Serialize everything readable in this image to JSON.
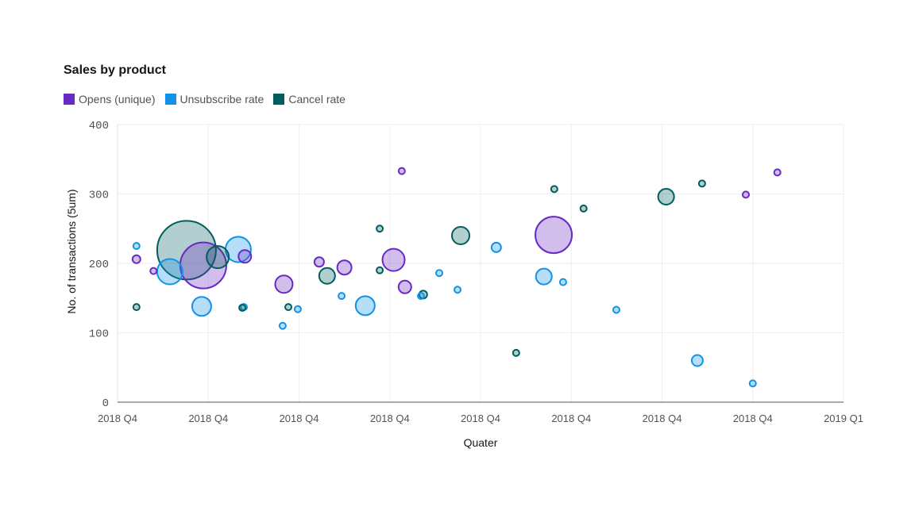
{
  "chart_data": {
    "type": "bubble",
    "title": "Sales by product",
    "xlabel": "Quater",
    "ylabel": "No. of transactions (5um)",
    "ylim": [
      0,
      400
    ],
    "yticks": [
      "0",
      "100",
      "200",
      "300",
      "400"
    ],
    "xlim": [
      "2018-12-24T00:00",
      "2019-01-01T00:00"
    ],
    "xticks": [
      "2018 Q4",
      "2018 Q4",
      "2018 Q4",
      "2018 Q4",
      "2018 Q4",
      "2018 Q4",
      "2018 Q4",
      "2018 Q4",
      "2019 Q1"
    ],
    "grid": true,
    "legend_position": "top-left",
    "series": [
      {
        "name": "Opens (unique)",
        "color": "#6929c4",
        "points": [
          {
            "x": "2018-12-24T05:00",
            "y": 206,
            "size": 25
          },
          {
            "x": "2018-12-24T09:30",
            "y": 189,
            "size": 16
          },
          {
            "x": "2018-12-24T22:40",
            "y": 197,
            "size": 841
          },
          {
            "x": "2018-12-25T09:40",
            "y": 210,
            "size": 64
          },
          {
            "x": "2018-12-25T20:00",
            "y": 170,
            "size": 121
          },
          {
            "x": "2018-12-26T05:20",
            "y": 202,
            "size": 36
          },
          {
            "x": "2018-12-26T12:00",
            "y": 194,
            "size": 81
          },
          {
            "x": "2018-12-27T01:00",
            "y": 205,
            "size": 196
          },
          {
            "x": "2018-12-27T03:10",
            "y": 333,
            "size": 16
          },
          {
            "x": "2018-12-27T04:00",
            "y": 166,
            "size": 64
          },
          {
            "x": "2018-12-28T19:20",
            "y": 241,
            "size": 529
          },
          {
            "x": "2018-12-30T22:10",
            "y": 299,
            "size": 16
          },
          {
            "x": "2018-12-31T06:30",
            "y": 331,
            "size": 16
          }
        ]
      },
      {
        "name": "Unsubscribe rate",
        "color": "#1192e8",
        "points": [
          {
            "x": "2018-12-24T05:00",
            "y": 225,
            "size": 16
          },
          {
            "x": "2018-12-24T13:50",
            "y": 188,
            "size": 256
          },
          {
            "x": "2018-12-24T22:15",
            "y": 138,
            "size": 144
          },
          {
            "x": "2018-12-25T07:55",
            "y": 220,
            "size": 256
          },
          {
            "x": "2018-12-25T09:25",
            "y": 137,
            "size": 16
          },
          {
            "x": "2018-12-25T19:40",
            "y": 110,
            "size": 16
          },
          {
            "x": "2018-12-25T23:40",
            "y": 134,
            "size": 16
          },
          {
            "x": "2018-12-26T11:15",
            "y": 153,
            "size": 16
          },
          {
            "x": "2018-12-26T17:30",
            "y": 139,
            "size": 144
          },
          {
            "x": "2018-12-27T08:15",
            "y": 153,
            "size": 16
          },
          {
            "x": "2018-12-27T13:05",
            "y": 186,
            "size": 16
          },
          {
            "x": "2018-12-27T17:55",
            "y": 162,
            "size": 16
          },
          {
            "x": "2018-12-28T04:10",
            "y": 223,
            "size": 36
          },
          {
            "x": "2018-12-28T16:45",
            "y": 181,
            "size": 100
          },
          {
            "x": "2018-12-28T21:50",
            "y": 173,
            "size": 16
          },
          {
            "x": "2018-12-29T11:55",
            "y": 133,
            "size": 16
          },
          {
            "x": "2018-12-30T09:20",
            "y": 60,
            "size": 49
          },
          {
            "x": "2018-12-31T00:00",
            "y": 27,
            "size": 16
          }
        ]
      },
      {
        "name": "Cancel rate",
        "color": "#005d5d",
        "points": [
          {
            "x": "2018-12-24T05:00",
            "y": 137,
            "size": 16
          },
          {
            "x": "2018-12-24T18:15",
            "y": 219,
            "size": 1369
          },
          {
            "x": "2018-12-25T02:30",
            "y": 209,
            "size": 196
          },
          {
            "x": "2018-12-25T09:00",
            "y": 136,
            "size": 16
          },
          {
            "x": "2018-12-25T21:10",
            "y": 137,
            "size": 16
          },
          {
            "x": "2018-12-26T07:25",
            "y": 182,
            "size": 100
          },
          {
            "x": "2018-12-26T21:20",
            "y": 250,
            "size": 16
          },
          {
            "x": "2018-12-26T21:20",
            "y": 190,
            "size": 16
          },
          {
            "x": "2018-12-27T08:50",
            "y": 155,
            "size": 25
          },
          {
            "x": "2018-12-27T18:45",
            "y": 240,
            "size": 121
          },
          {
            "x": "2018-12-28T09:25",
            "y": 71,
            "size": 16
          },
          {
            "x": "2018-12-28T19:30",
            "y": 307,
            "size": 16
          },
          {
            "x": "2018-12-29T03:15",
            "y": 279,
            "size": 16
          },
          {
            "x": "2018-12-30T01:05",
            "y": 296,
            "size": 100
          },
          {
            "x": "2018-12-30T10:35",
            "y": 315,
            "size": 16
          }
        ]
      }
    ]
  }
}
